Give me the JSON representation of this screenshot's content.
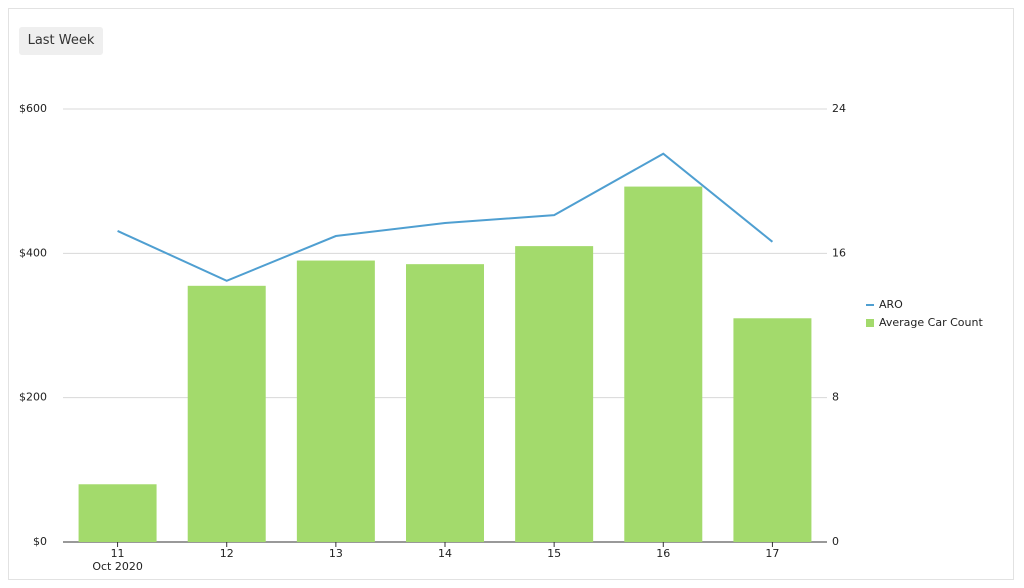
{
  "filter": "Last Week",
  "chart_data": {
    "type": "bar-line",
    "categories": [
      "11",
      "12",
      "13",
      "14",
      "15",
      "16",
      "17"
    ],
    "x_group_label": "Oct 2020",
    "series": [
      {
        "name": "ARO",
        "type": "line",
        "color": "#4f9fd1",
        "axis": "y",
        "values": [
          431,
          362,
          424,
          442,
          453,
          538,
          416
        ]
      },
      {
        "name": "Average Car Count",
        "type": "bar",
        "color": "#a3da6c",
        "axis": "y2",
        "values": [
          3.2,
          14.2,
          15.6,
          15.4,
          16.4,
          19.7,
          12.4
        ]
      }
    ],
    "ylim": [
      0,
      600
    ],
    "yticks": [
      {
        "value": 0,
        "label": "$0"
      },
      {
        "value": 200,
        "label": "$200"
      },
      {
        "value": 400,
        "label": "$400"
      },
      {
        "value": 600,
        "label": "$600"
      }
    ],
    "y2lim": [
      0,
      24
    ],
    "y2ticks": [
      0,
      8,
      16,
      24
    ],
    "grid": true,
    "legend": "right"
  }
}
